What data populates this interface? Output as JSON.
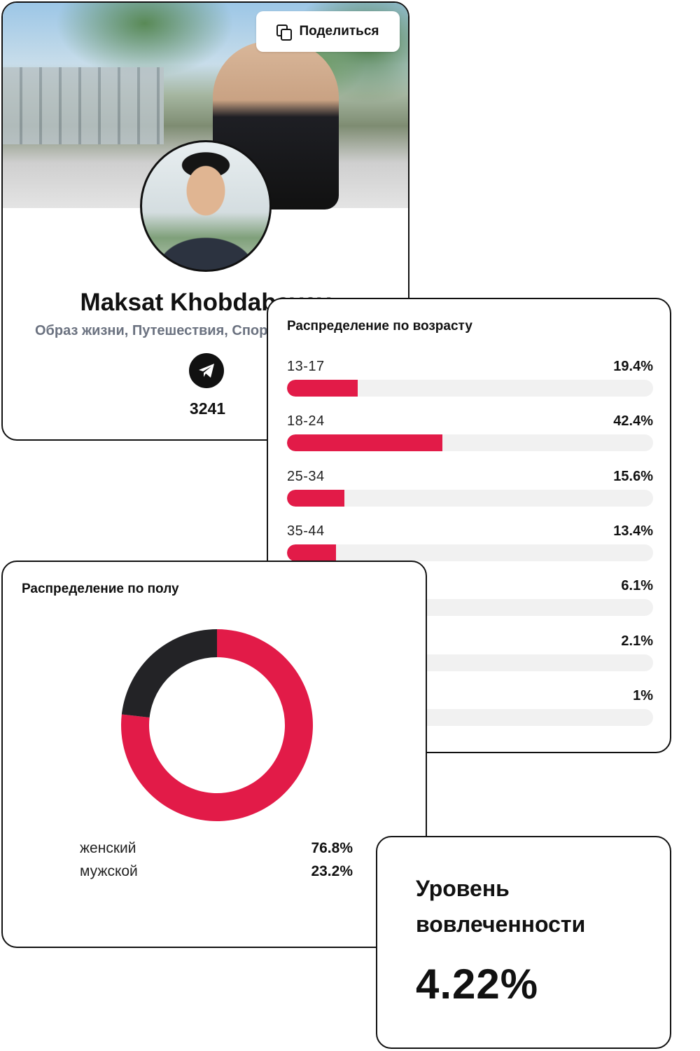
{
  "profile": {
    "share_label": "Поделиться",
    "name": "Maksat Khobdabayev",
    "categories": "Образ жизни, Путешествия, Спорт",
    "followers": "3241"
  },
  "age_distribution": {
    "title": "Распределение по возрасту",
    "rows": [
      {
        "label": "13-17",
        "value": "19.4%"
      },
      {
        "label": "18-24",
        "value": "42.4%"
      },
      {
        "label": "25-34",
        "value": "15.6%"
      },
      {
        "label": "35-44",
        "value": "13.4%"
      },
      {
        "label": "",
        "value": "6.1%"
      },
      {
        "label": "",
        "value": "2.1%"
      },
      {
        "label": "",
        "value": "1%"
      }
    ]
  },
  "gender_distribution": {
    "title": "Распределение по полу",
    "items": [
      {
        "label": "женский",
        "value": "76.8%"
      },
      {
        "label": "мужской",
        "value": "23.2%"
      }
    ]
  },
  "engagement": {
    "title": "Уровень вовлеченности",
    "value": "4.22%"
  },
  "colors": {
    "accent": "#e21b48",
    "dark": "#232326",
    "track": "#f1f1f1"
  },
  "chart_data": [
    {
      "type": "bar",
      "title": "Распределение по возрасту",
      "categories": [
        "13-17",
        "18-24",
        "25-34",
        "35-44",
        "",
        "",
        ""
      ],
      "values": [
        19.4,
        42.4,
        15.6,
        13.4,
        6.1,
        2.1,
        1
      ],
      "ylim": [
        0,
        100
      ]
    },
    {
      "type": "pie",
      "title": "Распределение по полу",
      "labels": [
        "женский",
        "мужской"
      ],
      "values": [
        76.8,
        23.2
      ],
      "colors": [
        "#e21b48",
        "#232326"
      ]
    }
  ]
}
